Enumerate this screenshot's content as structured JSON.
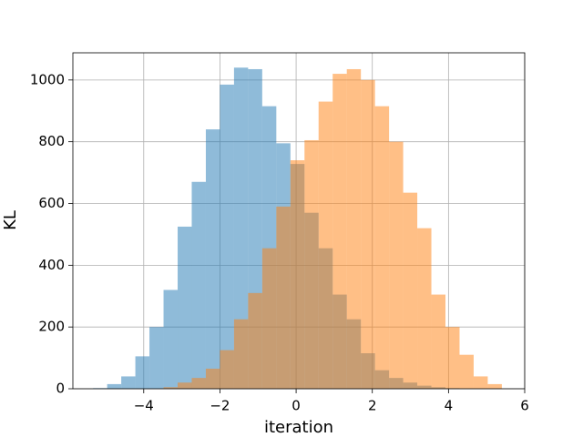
{
  "chart_data": {
    "type": "histogram",
    "x_label": "iteration",
    "y_label": "KL",
    "xlim": [
      -5.86,
      6.0
    ],
    "ylim": [
      0,
      1088
    ],
    "xticks": [
      {
        "value": -4,
        "label": "−4"
      },
      {
        "value": -2,
        "label": "−2"
      },
      0,
      2,
      4,
      6
    ],
    "yticks": [
      0,
      200,
      400,
      600,
      800,
      1000
    ],
    "grid": true,
    "alpha": 0.5,
    "series": [
      {
        "color": "#1f77b4",
        "bins": [
          -5.33,
          -4.96,
          -4.59,
          -4.22,
          -3.85,
          -3.48,
          -3.11,
          -2.74,
          -2.37,
          -2.0,
          -1.63,
          -1.26,
          -0.89,
          -0.52,
          -0.15,
          0.22,
          0.59,
          0.96,
          1.33,
          1.7,
          2.07,
          2.44,
          2.81,
          3.18,
          3.55,
          3.92,
          4.29
        ],
        "values": [
          2,
          15,
          40,
          105,
          200,
          320,
          525,
          670,
          840,
          985,
          1040,
          1035,
          915,
          795,
          728,
          570,
          455,
          305,
          225,
          115,
          60,
          35,
          20,
          10,
          5,
          2
        ]
      },
      {
        "color": "#ff7f0e",
        "bins": [
          -3.48,
          -3.11,
          -2.74,
          -2.37,
          -2.0,
          -1.63,
          -1.26,
          -0.89,
          -0.52,
          -0.15,
          0.22,
          0.59,
          0.96,
          1.33,
          1.7,
          2.07,
          2.44,
          2.81,
          3.18,
          3.55,
          3.92,
          4.29,
          4.66,
          5.03,
          5.4
        ],
        "values": [
          5,
          20,
          35,
          65,
          125,
          225,
          310,
          455,
          590,
          740,
          805,
          930,
          1020,
          1035,
          1000,
          915,
          800,
          635,
          520,
          305,
          200,
          110,
          40,
          15
        ]
      }
    ]
  }
}
